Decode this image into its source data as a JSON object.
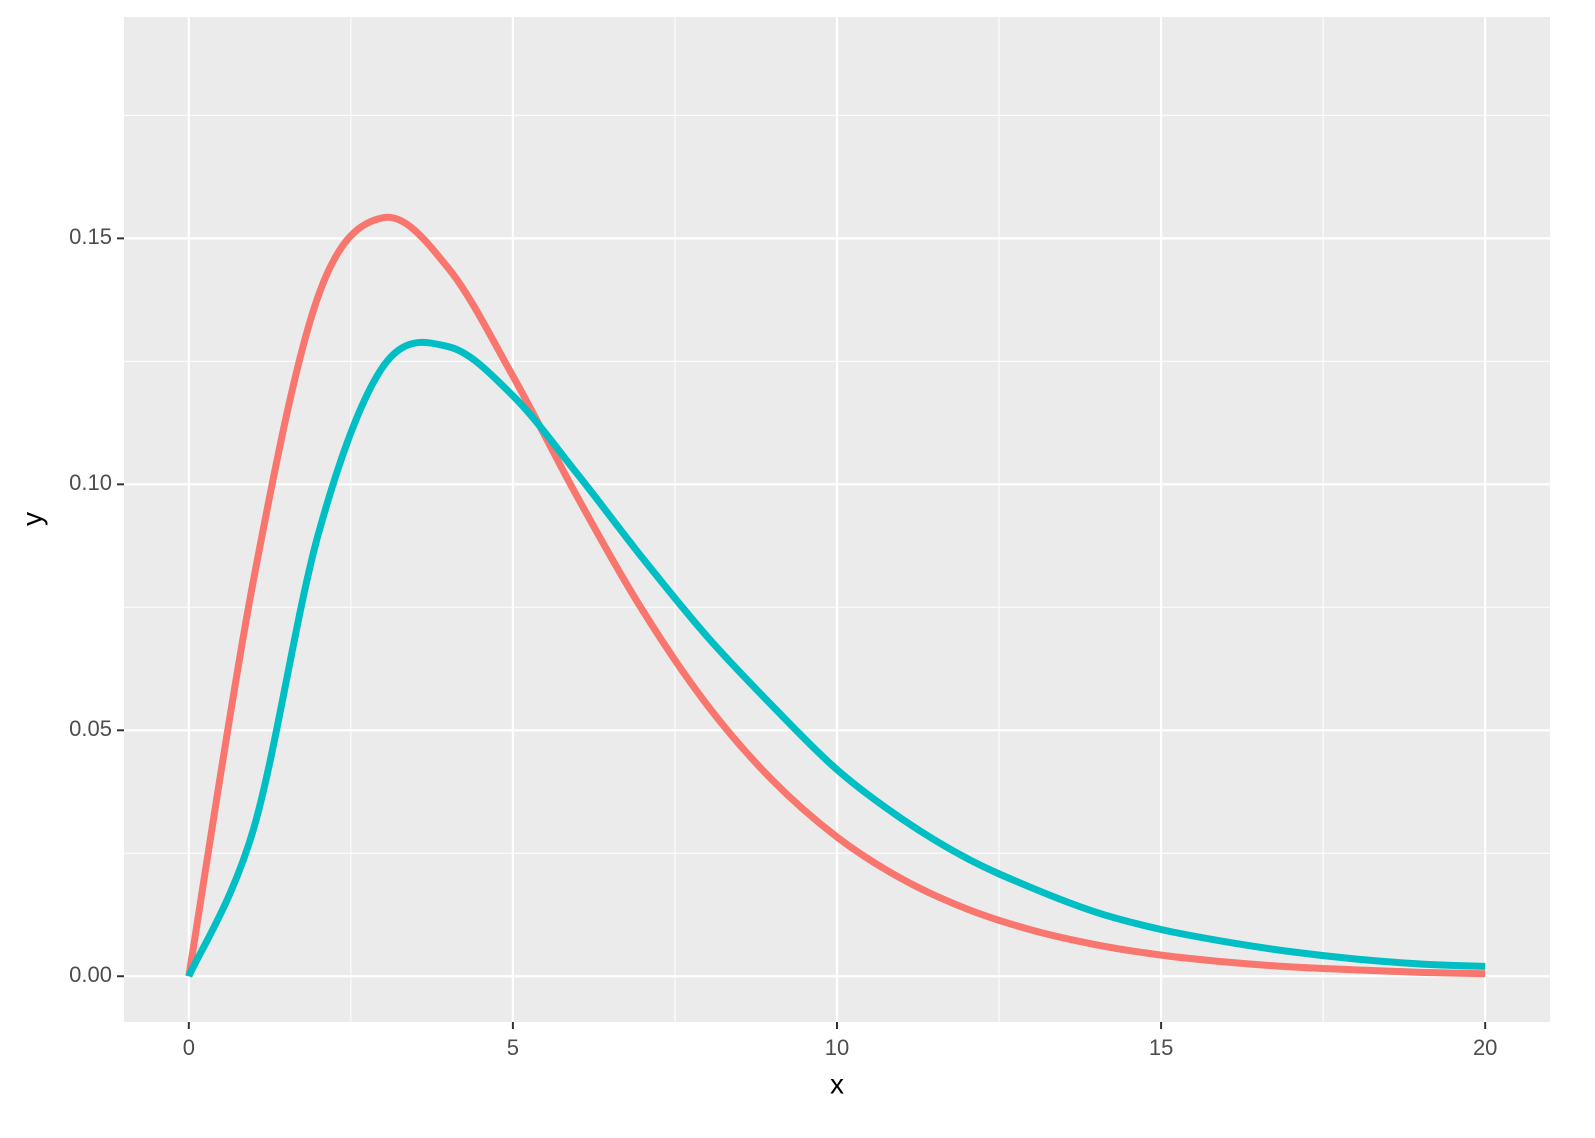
{
  "chart_data": {
    "type": "line",
    "x_label": "x",
    "y_label": "y",
    "x": [
      0,
      1,
      2,
      3,
      4,
      5,
      6,
      7,
      8,
      9,
      10,
      11,
      12,
      13,
      14,
      15,
      16,
      17,
      18,
      19,
      20
    ],
    "series": [
      {
        "color": "#F8766D",
        "values": [
          0,
          0.0807,
          0.1384,
          0.1542,
          0.144,
          0.122,
          0.0973,
          0.0744,
          0.0551,
          0.0399,
          0.0283,
          0.0198,
          0.0137,
          0.0094,
          0.0064,
          0.0043,
          0.0029,
          0.0019,
          0.0013,
          0.0008,
          0.0005
        ]
      },
      {
        "color": "#00BFC4",
        "values": [
          0,
          0.03,
          0.09,
          0.124,
          0.128,
          0.118,
          0.102,
          0.085,
          0.069,
          0.055,
          0.042,
          0.032,
          0.024,
          0.018,
          0.013,
          0.0095,
          0.007,
          0.005,
          0.0035,
          0.0025,
          0.002
        ]
      }
    ],
    "xlim": [
      -1,
      21
    ],
    "xticks": [
      0,
      5,
      10,
      15,
      20
    ],
    "ylim": [
      -0.0093,
      0.195
    ],
    "yticks": [
      {
        "value": 0,
        "label": "0.00"
      },
      {
        "value": 0.05,
        "label": "0.05"
      },
      {
        "value": 0.1,
        "label": "0.10"
      },
      {
        "value": 0.15,
        "label": "0.15"
      }
    ],
    "grid": true
  }
}
